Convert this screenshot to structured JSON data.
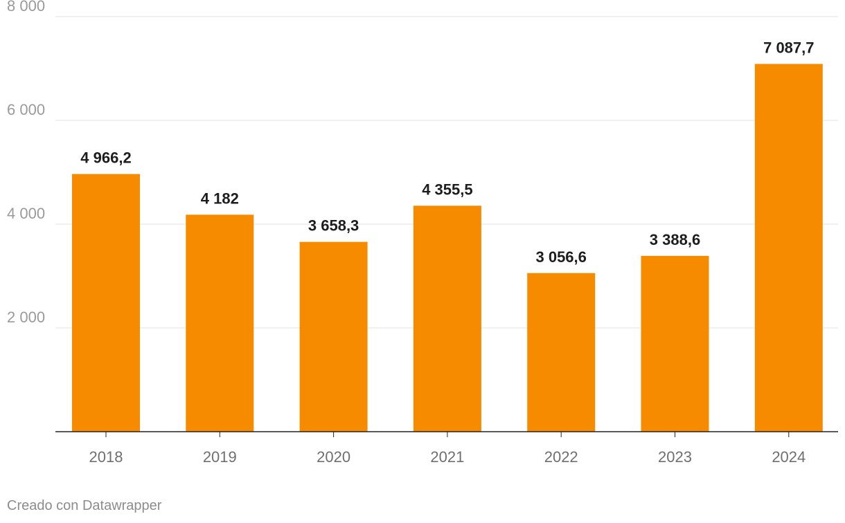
{
  "chart_data": {
    "type": "bar",
    "categories": [
      "2018",
      "2019",
      "2020",
      "2021",
      "2022",
      "2023",
      "2024"
    ],
    "values": [
      4966.2,
      4182,
      3658.3,
      4355.5,
      3056.6,
      3388.6,
      7087.7
    ],
    "data_labels": [
      "4 966,2",
      "4 182",
      "3 658,3",
      "4 355,5",
      "3 056,6",
      "3 388,6",
      "7 087,7"
    ],
    "y_ticks": [
      2000,
      4000,
      6000,
      8000
    ],
    "y_tick_labels": [
      "2 000",
      "4 000",
      "6 000",
      "8 000"
    ],
    "ylim": [
      0,
      8000
    ],
    "grid": true,
    "bar_color": "#f78b00",
    "title": "",
    "xlabel": "",
    "ylabel": ""
  },
  "footer": {
    "credit": "Creado con Datawrapper"
  }
}
